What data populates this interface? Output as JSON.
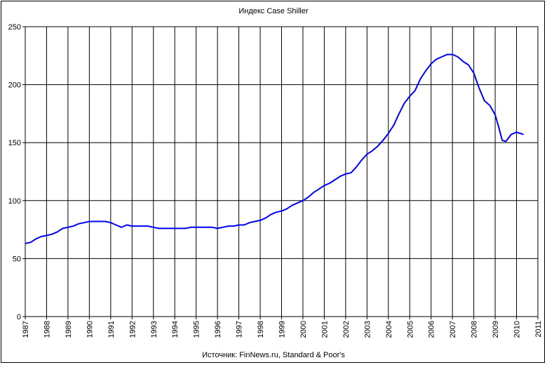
{
  "chart_data": {
    "type": "line",
    "title": "Индекс Case Shiller",
    "source": "Источник: FinNews.ru, Standard & Poor's",
    "xlabel": "",
    "ylabel": "",
    "xlim": [
      1987,
      2011
    ],
    "ylim": [
      0,
      250
    ],
    "yticks": [
      0,
      50,
      100,
      150,
      200,
      250
    ],
    "xticks": [
      "1987",
      "1988",
      "1989",
      "1990",
      "1991",
      "1992",
      "1993",
      "1994",
      "1995",
      "1996",
      "1997",
      "1998",
      "1999",
      "2000",
      "2001",
      "2002",
      "2003",
      "2004",
      "2005",
      "2006",
      "2007",
      "2008",
      "2009",
      "2010",
      "2011"
    ],
    "grid": true,
    "legend": "none",
    "line_color": "#0000ff",
    "series": [
      {
        "x": [
          1987.0,
          1987.25,
          1987.5,
          1987.75,
          1988.0,
          1988.25,
          1988.5,
          1988.75,
          1989.0,
          1989.25,
          1989.5,
          1989.75,
          1990.0,
          1990.25,
          1990.5,
          1990.75,
          1991.0,
          1991.25,
          1991.5,
          1991.75,
          1992.0,
          1992.25,
          1992.5,
          1992.75,
          1993.0,
          1993.25,
          1993.5,
          1993.75,
          1994.0,
          1994.25,
          1994.5,
          1994.75,
          1995.0,
          1995.25,
          1995.5,
          1995.75,
          1996.0,
          1996.25,
          1996.5,
          1996.75,
          1997.0,
          1997.25,
          1997.5,
          1997.75,
          1998.0,
          1998.25,
          1998.5,
          1998.75,
          1999.0,
          1999.25,
          1999.5,
          1999.75,
          2000.0,
          2000.25,
          2000.5,
          2000.75,
          2001.0,
          2001.25,
          2001.5,
          2001.75,
          2002.0,
          2002.25,
          2002.5,
          2002.75,
          2003.0,
          2003.25,
          2003.5,
          2003.75,
          2004.0,
          2004.25,
          2004.5,
          2004.75,
          2005.0,
          2005.25,
          2005.5,
          2005.75,
          2006.0,
          2006.25,
          2006.5,
          2006.75,
          2007.0,
          2007.25,
          2007.5,
          2007.75,
          2008.0,
          2008.25,
          2008.5,
          2008.75,
          2009.0,
          2009.17,
          2009.33,
          2009.5,
          2009.75,
          2010.0,
          2010.17,
          2010.33
        ],
        "values": [
          63,
          64,
          67,
          69,
          70,
          71,
          73,
          76,
          77,
          78,
          80,
          81,
          82,
          82,
          82,
          82,
          81,
          79,
          77,
          79,
          78,
          78,
          78,
          78,
          77,
          76,
          76,
          76,
          76,
          76,
          76,
          77,
          77,
          77,
          77,
          77,
          76,
          77,
          78,
          78,
          79,
          79,
          81,
          82,
          83,
          85,
          88,
          90,
          91,
          93,
          96,
          98,
          100,
          103,
          107,
          110,
          113,
          115,
          118,
          121,
          123,
          124,
          129,
          135,
          140,
          143,
          147,
          152,
          158,
          165,
          175,
          184,
          190,
          195,
          205,
          212,
          218,
          222,
          224,
          226,
          226,
          224,
          220,
          217,
          210,
          197,
          186,
          182,
          174,
          163,
          152,
          151,
          157,
          159,
          158,
          157
        ]
      }
    ]
  }
}
